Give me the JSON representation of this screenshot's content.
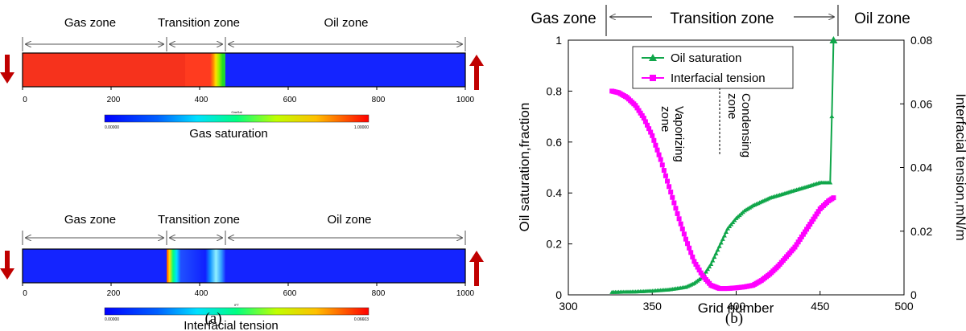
{
  "panel_a": {
    "caption": "(a)",
    "strips": [
      {
        "zones": [
          "Gas zone",
          "Transition zone",
          "Oil zone"
        ],
        "ticks": [
          "0",
          "200",
          "400",
          "600",
          "800",
          "1000"
        ],
        "colorbar_title": "GasSat",
        "colorbar_min": "0.00000",
        "colorbar_max": "1.00000",
        "colorbar_label": "Gas saturation",
        "boundaries": [
          0,
          325,
          460,
          1000
        ]
      },
      {
        "zones": [
          "Gas zone",
          "Transition zone",
          "Oil zone"
        ],
        "ticks": [
          "0",
          "200",
          "400",
          "600",
          "800",
          "1000"
        ],
        "colorbar_title": "IFT",
        "colorbar_min": "0.00000",
        "colorbar_max": "0.06603",
        "colorbar_label": "Interfacial tension",
        "boundaries": [
          0,
          325,
          460,
          1000
        ]
      }
    ]
  },
  "panel_b": {
    "caption": "(b)",
    "zones": [
      "Gas zone",
      "Transition zone",
      "Oil zone"
    ],
    "annotations": [
      "Vaporizing zone",
      "Condensing zone"
    ],
    "colors": {
      "oil": "#10a64a",
      "ift": "#ff00ff",
      "arrow_red": "#c00000"
    }
  },
  "chart_data": [
    {
      "type": "heatmap",
      "title": "Gas saturation",
      "x_range": [
        0,
        1000
      ],
      "value_range": [
        0,
        1
      ],
      "zones": [
        {
          "name": "Gas zone",
          "from": 0,
          "to": 325,
          "value": 0.9
        },
        {
          "name": "Transition zone",
          "from": 325,
          "to": 460,
          "profile": "red to green"
        },
        {
          "name": "Oil zone",
          "from": 460,
          "to": 1000,
          "value": 0.0
        }
      ]
    },
    {
      "type": "heatmap",
      "title": "Interfacial tension",
      "x_range": [
        0,
        1000
      ],
      "value_range": [
        0,
        0.06603
      ],
      "zones": [
        {
          "name": "Gas zone",
          "from": 0,
          "to": 325,
          "value": 0.0
        },
        {
          "name": "Transition zone",
          "from": 325,
          "to": 460,
          "profile": "high at edges, low in middle"
        },
        {
          "name": "Oil zone",
          "from": 460,
          "to": 1000,
          "value": 0.0
        }
      ]
    },
    {
      "type": "line",
      "xlabel": "Grid number",
      "ylabel": "Oil saturation,fraction",
      "y2label": "Interfacial tension,mN/m",
      "xlim": [
        300,
        500
      ],
      "ylim": [
        0,
        1
      ],
      "y2lim": [
        0,
        0.08
      ],
      "xticks": [
        "300",
        "350",
        "400",
        "450",
        "500"
      ],
      "yticks": [
        "0",
        "0.2",
        "0.4",
        "0.6",
        "0.8",
        "1"
      ],
      "y2ticks": [
        "0",
        "0.02",
        "0.04",
        "0.06",
        "0.08"
      ],
      "legend_position": "top-center",
      "series": [
        {
          "name": "Oil saturation",
          "axis": "left",
          "x": [
            326,
            340,
            350,
            360,
            370,
            375,
            380,
            385,
            390,
            395,
            400,
            405,
            410,
            420,
            430,
            440,
            450,
            456,
            457,
            458
          ],
          "y": [
            0.01,
            0.012,
            0.015,
            0.02,
            0.03,
            0.045,
            0.07,
            0.12,
            0.19,
            0.26,
            0.3,
            0.33,
            0.35,
            0.38,
            0.4,
            0.42,
            0.44,
            0.44,
            0.7,
            1.0
          ]
        },
        {
          "name": "Interfacial tension",
          "axis": "right",
          "x": [
            326,
            330,
            335,
            340,
            345,
            350,
            355,
            360,
            365,
            370,
            375,
            380,
            385,
            390,
            395,
            400,
            405,
            410,
            415,
            420,
            425,
            430,
            435,
            440,
            445,
            450,
            455,
            458
          ],
          "y": [
            0.064,
            0.0635,
            0.062,
            0.0595,
            0.0555,
            0.05,
            0.0425,
            0.034,
            0.0255,
            0.0175,
            0.0105,
            0.006,
            0.003,
            0.002,
            0.002,
            0.0022,
            0.0025,
            0.003,
            0.0045,
            0.0065,
            0.009,
            0.012,
            0.015,
            0.019,
            0.023,
            0.027,
            0.0295,
            0.0305
          ]
        }
      ]
    }
  ]
}
